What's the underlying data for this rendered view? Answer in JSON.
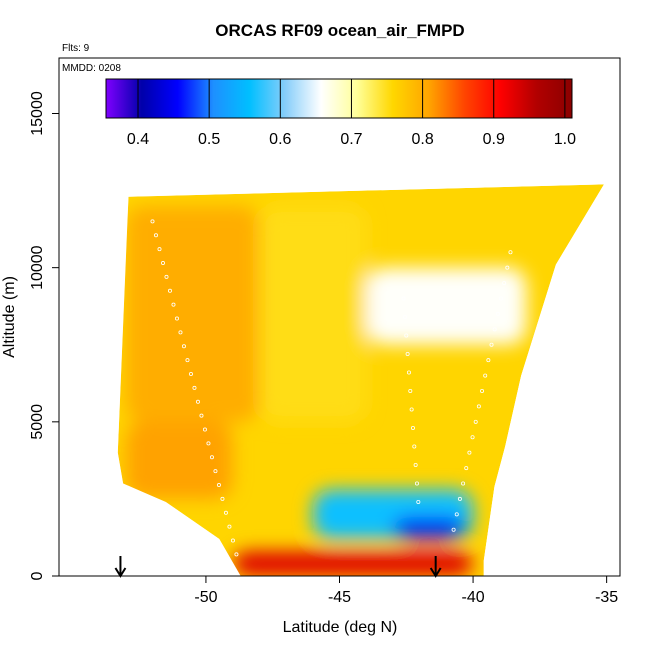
{
  "chart_data": {
    "type": "heatmap",
    "title": "ORCAS RF09 ocean_air_FMPD",
    "subtitle_flights": "Flts: 9",
    "subtitle_date": "MMDD: 0208",
    "xlabel": "Latitude (deg N)",
    "ylabel": "Altitude (m)",
    "xlim": [
      -55.5,
      -34.5
    ],
    "ylim": [
      0,
      16800
    ],
    "xticks": [
      -50,
      -45,
      -40,
      -35
    ],
    "xtick_labels": [
      "-50",
      "-45",
      "-40",
      "-35"
    ],
    "yticks": [
      0,
      5000,
      10000,
      15000
    ],
    "ytick_labels": [
      "0",
      "5000",
      "10000",
      "15000"
    ],
    "grid": false,
    "colorbar": {
      "placement": "top-inside",
      "range": [
        0.355,
        1.01
      ],
      "ticks": [
        0.4,
        0.5,
        0.6,
        0.7,
        0.8,
        0.9,
        1.0
      ],
      "tick_labels": [
        "0.4",
        "0.5",
        "0.6",
        "0.7",
        "0.8",
        "0.9",
        "1.0"
      ],
      "colors": [
        "#7f00ff",
        "#0000aa",
        "#0000ff",
        "#1e90ff",
        "#00bfff",
        "#87cefa",
        "#ffffff",
        "#ffff99",
        "#ffd700",
        "#ffa500",
        "#ff4500",
        "#ff0000",
        "#b20000",
        "#8b0000"
      ]
    },
    "domain_outline": {
      "latitude_left_edge": [
        [
          -52.9,
          12300
        ],
        [
          -53.3,
          4000
        ],
        [
          -53.1,
          3000
        ],
        [
          -51.5,
          2400
        ],
        [
          -49.5,
          1200
        ],
        [
          -48.7,
          0
        ]
      ],
      "latitude_right_edge": [
        [
          -35.1,
          12700
        ],
        [
          -36.9,
          10100
        ],
        [
          -38.2,
          6500
        ],
        [
          -38.8,
          4200
        ],
        [
          -39.2,
          2900
        ],
        [
          -39.4,
          1700
        ],
        [
          -39.6,
          500
        ]
      ],
      "bottom_edge_latitude": [
        -48.7,
        -39.6
      ]
    },
    "field_regions": [
      {
        "label": "upper-left",
        "lat": [
          -53,
          -48
        ],
        "alt": [
          5000,
          12000
        ],
        "value": 0.8
      },
      {
        "label": "upper-middle",
        "lat": [
          -48,
          -44
        ],
        "alt": [
          5000,
          12000
        ],
        "value": 0.75
      },
      {
        "label": "upper-right",
        "lat": [
          -44,
          -38
        ],
        "alt": [
          7500,
          10000
        ],
        "value": 0.66
      },
      {
        "label": "low-left",
        "lat": [
          -53,
          -49
        ],
        "alt": [
          2500,
          5000
        ],
        "value": 0.81
      },
      {
        "label": "mid-blue-band",
        "lat": [
          -46,
          -40
        ],
        "alt": [
          1200,
          2800
        ],
        "value": 0.56
      },
      {
        "label": "dark-blue-core",
        "lat": [
          -43,
          -40.3
        ],
        "alt": [
          1200,
          1900
        ],
        "value": 0.45
      },
      {
        "label": "near-surface",
        "lat": [
          -49,
          -40
        ],
        "alt": [
          0,
          800
        ],
        "value": 0.93
      }
    ],
    "annotations": [
      {
        "type": "arrow",
        "latitude": -53.2
      },
      {
        "type": "arrow",
        "latitude": -41.4
      }
    ]
  }
}
